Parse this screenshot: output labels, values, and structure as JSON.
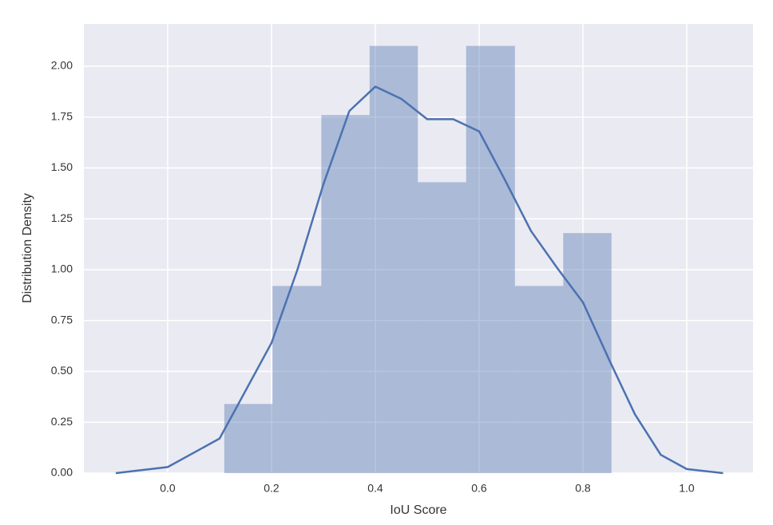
{
  "chart_data": {
    "type": "histogram",
    "xlabel": "IoU Score",
    "ylabel": "Distribution Density",
    "bins": [
      0.109,
      0.202,
      0.296,
      0.389,
      0.482,
      0.575,
      0.669,
      0.762,
      0.855
    ],
    "values": [
      0.34,
      0.92,
      1.76,
      2.1,
      1.43,
      2.1,
      0.92,
      1.18
    ],
    "color": "#4c72b0",
    "kde": {
      "color": "#4c72b0",
      "x": [
        -0.1,
        0.0,
        0.1,
        0.2,
        0.25,
        0.3,
        0.35,
        0.4,
        0.45,
        0.5,
        0.55,
        0.6,
        0.65,
        0.7,
        0.75,
        0.8,
        0.85,
        0.9,
        0.95,
        1.0,
        1.07
      ],
      "y": [
        0.0,
        0.03,
        0.17,
        0.64,
        1.0,
        1.42,
        1.78,
        1.9,
        1.84,
        1.74,
        1.74,
        1.68,
        1.44,
        1.19,
        1.01,
        0.84,
        0.56,
        0.29,
        0.09,
        0.02,
        0.0
      ]
    },
    "xlim": [
      -0.1615,
      1.1277
    ],
    "ylim": [
      0,
      2.208
    ],
    "xticks": [
      {
        "value": 0,
        "label": "0.0"
      },
      0.2,
      0.4,
      0.6,
      0.8,
      {
        "value": 1,
        "label": "1.0"
      }
    ],
    "yticks": [
      {
        "value": 0,
        "label": "0.00"
      },
      {
        "value": 0.25,
        "label": "0.25"
      },
      {
        "value": 0.5,
        "label": "0.50"
      },
      {
        "value": 0.75,
        "label": "0.75"
      },
      {
        "value": 1,
        "label": "1.00"
      },
      {
        "value": 1.25,
        "label": "1.25"
      },
      {
        "value": 1.5,
        "label": "1.50"
      },
      {
        "value": 1.75,
        "label": "1.75"
      },
      {
        "value": 2,
        "label": "2.00"
      }
    ],
    "grid": true
  }
}
